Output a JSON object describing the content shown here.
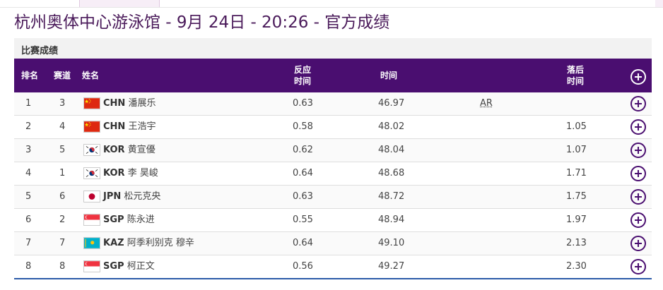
{
  "page": {
    "title": "杭州奥体中心游泳馆 - 9月 24日 - 20:26 - 官方成绩",
    "section_label": "比赛成绩"
  },
  "table": {
    "headers": {
      "rank": "排名",
      "lane": "赛道",
      "name": "姓名",
      "reaction_line1": "反应",
      "reaction_line2": "时间",
      "time": "时间",
      "behind_line1": "落后",
      "behind_line2": "时间"
    },
    "rows": [
      {
        "rank": "1",
        "lane": "3",
        "flag": "CHN",
        "country": "CHN",
        "name": "潘展乐",
        "reaction": "0.63",
        "time": "46.97",
        "record": "AR",
        "behind": ""
      },
      {
        "rank": "2",
        "lane": "4",
        "flag": "CHN",
        "country": "CHN",
        "name": "王浩宇",
        "reaction": "0.58",
        "time": "48.02",
        "record": "",
        "behind": "1.05"
      },
      {
        "rank": "3",
        "lane": "5",
        "flag": "KOR",
        "country": "KOR",
        "name": "黄宣優",
        "reaction": "0.62",
        "time": "48.04",
        "record": "",
        "behind": "1.07"
      },
      {
        "rank": "4",
        "lane": "1",
        "flag": "KOR",
        "country": "KOR",
        "name": "李 昊峻",
        "reaction": "0.64",
        "time": "48.68",
        "record": "",
        "behind": "1.71"
      },
      {
        "rank": "5",
        "lane": "6",
        "flag": "JPN",
        "country": "JPN",
        "name": "松元克央",
        "reaction": "0.63",
        "time": "48.72",
        "record": "",
        "behind": "1.75"
      },
      {
        "rank": "6",
        "lane": "2",
        "flag": "SGP",
        "country": "SGP",
        "name": "陈永进",
        "reaction": "0.55",
        "time": "48.94",
        "record": "",
        "behind": "1.97"
      },
      {
        "rank": "7",
        "lane": "7",
        "flag": "KAZ",
        "country": "KAZ",
        "name": "阿季利别克 穆辛",
        "reaction": "0.64",
        "time": "49.10",
        "record": "",
        "behind": "2.13"
      },
      {
        "rank": "8",
        "lane": "8",
        "flag": "SGP",
        "country": "SGP",
        "name": "柯正文",
        "reaction": "0.56",
        "time": "49.27",
        "record": "",
        "behind": "2.30"
      }
    ]
  },
  "colors": {
    "header_bg": "#4a0e70",
    "accent": "#4a0e70",
    "bottom_rule": "#2b5aa8"
  },
  "icons": {
    "expand": "plus-circle-icon",
    "flags": [
      "CHN-flag-icon",
      "KOR-flag-icon",
      "JPN-flag-icon",
      "SGP-flag-icon",
      "KAZ-flag-icon"
    ]
  }
}
